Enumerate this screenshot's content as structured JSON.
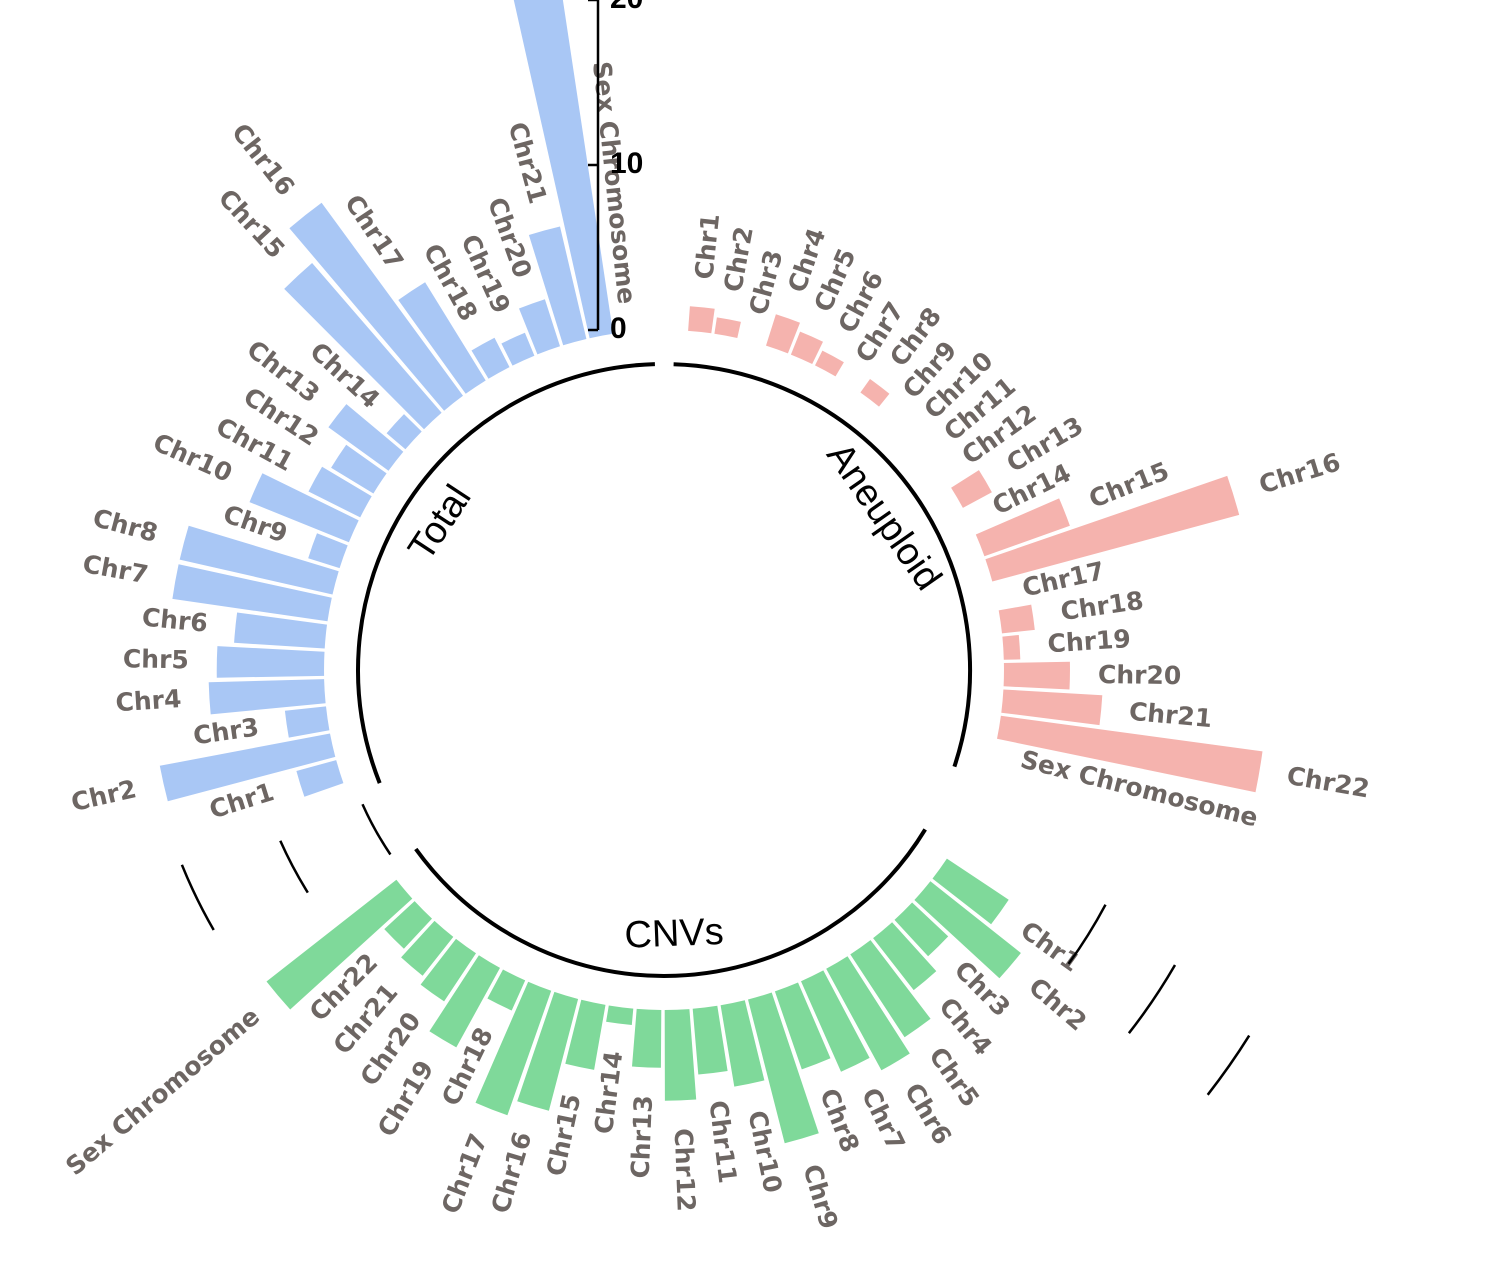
{
  "chart_data": {
    "type": "bar",
    "subtype": "circular-grouped-bar",
    "title": "",
    "radial_axis": {
      "ticks": [
        0,
        10,
        20
      ],
      "range": [
        0,
        22
      ]
    },
    "colors": {
      "Total": "#a9c7f5",
      "Aneuploid": "#f5b3ae",
      "CNVs": "#7fd99a"
    },
    "categories": [
      "Chr1",
      "Chr2",
      "Chr3",
      "Chr4",
      "Chr5",
      "Chr6",
      "Chr7",
      "Chr8",
      "Chr9",
      "Chr10",
      "Chr11",
      "Chr12",
      "Chr13",
      "Chr14",
      "Chr15",
      "Chr16",
      "Chr17",
      "Chr18",
      "Chr19",
      "Chr20",
      "Chr21",
      "Chr22",
      "Sex Chromosome"
    ],
    "series": [
      {
        "name": "Aneuploid",
        "values": [
          1.5,
          1,
          0,
          2,
          1.5,
          1,
          0,
          1,
          0,
          0,
          0,
          0,
          2,
          0,
          5.5,
          15.5,
          0,
          2,
          1,
          4,
          6,
          16,
          0
        ]
      },
      {
        "name": "CNVs",
        "values": [
          4.5,
          7,
          3,
          4,
          6,
          7,
          6,
          5,
          9,
          5,
          4,
          5.5,
          3.5,
          1,
          4,
          7,
          8,
          2,
          5.5,
          3.5,
          3,
          2.5,
          10
        ]
      },
      {
        "name": "Total",
        "values": [
          2.5,
          10.5,
          2.5,
          7,
          6.5,
          5.5,
          9.5,
          9.5,
          2,
          6.5,
          3.5,
          3,
          4.5,
          1.5,
          12,
          14.5,
          7,
          2,
          1.5,
          3,
          7,
          22,
          0
        ]
      }
    ],
    "groups": [
      {
        "name": "Aneuploid"
      },
      {
        "name": "CNVs"
      },
      {
        "name": "Total"
      }
    ],
    "legend": "none"
  }
}
